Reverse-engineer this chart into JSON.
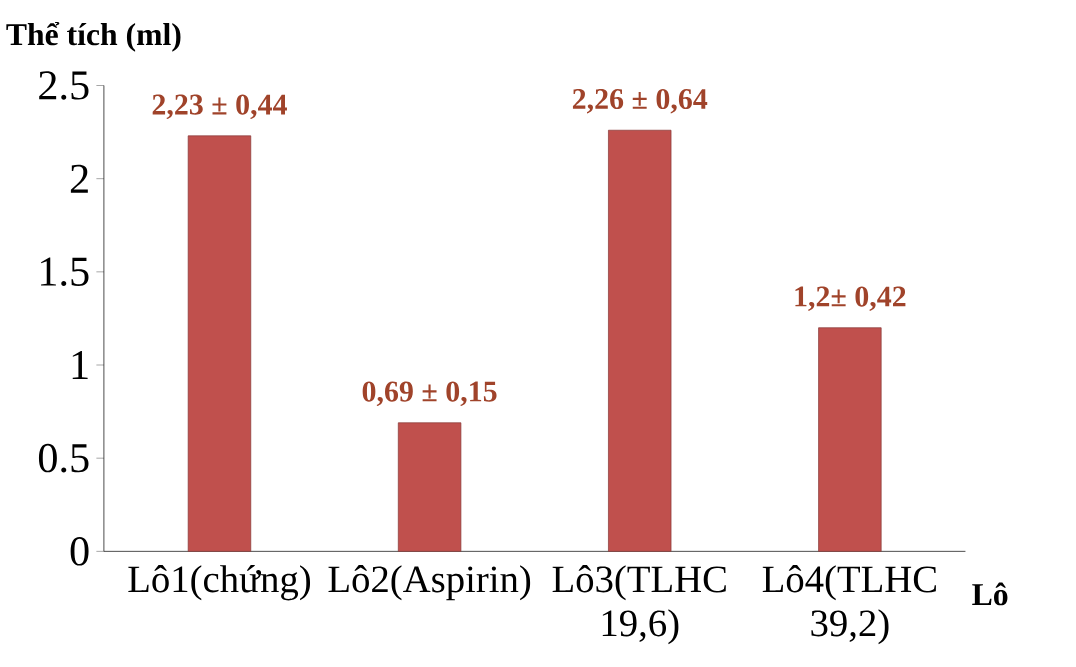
{
  "chart_data": {
    "type": "bar",
    "ylabel": "Thể tích (ml)",
    "xlabel": "Lô",
    "categories": [
      "Lô1(chứng)",
      "Lô2(Aspirin)",
      "Lô3(TLHC 19,6)",
      "Lô4(TLHC 39,2)"
    ],
    "values": [
      2.23,
      0.69,
      2.26,
      1.2
    ],
    "value_labels": [
      "2,23 ± 0,44",
      "0,69 ±  0,15",
      "2,26 ±  0,64",
      "1,2±  0,42"
    ],
    "color": "#c0504d",
    "ylim": [
      0,
      2.5
    ],
    "yticks": [
      0,
      0.5,
      1,
      1.5,
      2,
      2.5
    ],
    "grid": false
  }
}
